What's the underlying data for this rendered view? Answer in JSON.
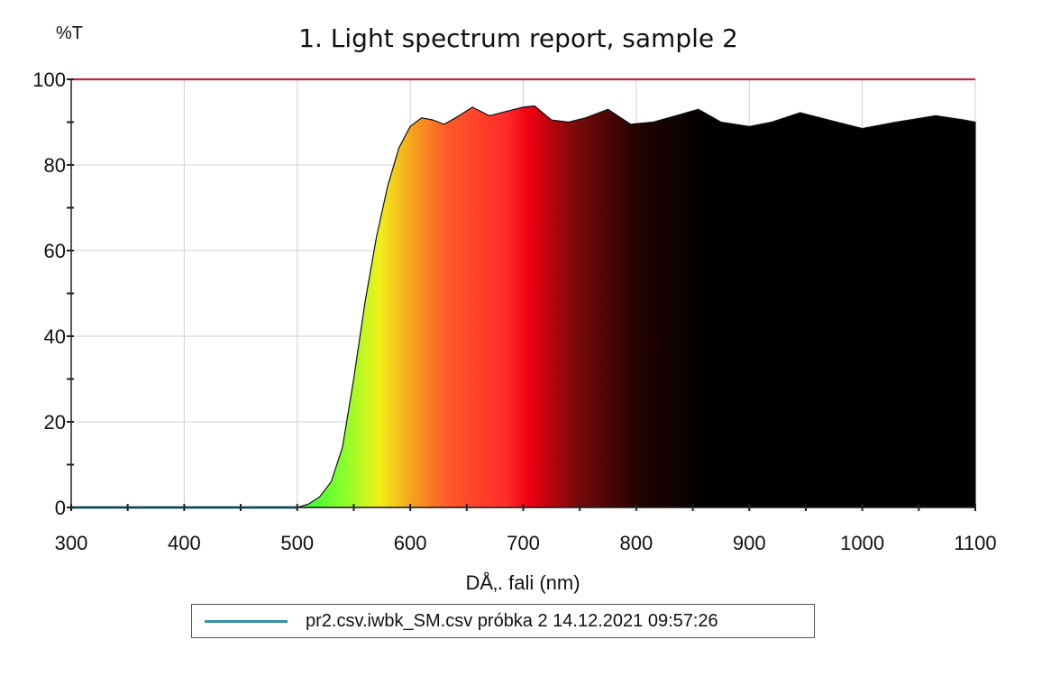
{
  "chart_data": {
    "type": "area",
    "title": "1. Light spectrum report, sample 2",
    "ylabel": "%T",
    "xlabel": "DÅ‚. fali (nm)",
    "xlim": [
      300,
      1100
    ],
    "ylim": [
      0,
      100
    ],
    "x_ticks": [
      300,
      400,
      500,
      600,
      700,
      800,
      900,
      1000,
      1100
    ],
    "y_ticks": [
      0,
      20,
      40,
      60,
      80,
      100
    ],
    "grid": true,
    "legend_position": "bottom",
    "series": [
      {
        "name": "pr2.csv.iwbk_SM.csv  próbka 2 14.12.2021 09:57:26",
        "color": "#3a8fa6",
        "x": [
          300,
          500,
          510,
          520,
          530,
          540,
          550,
          560,
          570,
          580,
          590,
          600,
          610,
          620,
          630,
          640,
          655,
          670,
          685,
          700,
          710,
          725,
          740,
          755,
          775,
          795,
          815,
          835,
          855,
          875,
          900,
          920,
          945,
          970,
          1000,
          1030,
          1065,
          1090,
          1100
        ],
        "y": [
          0,
          0,
          0.8,
          2.5,
          6,
          14,
          30,
          48,
          63,
          75,
          84,
          89,
          91,
          90.5,
          89.5,
          91,
          93.5,
          91.5,
          92.5,
          93.5,
          93.8,
          90.5,
          90,
          91,
          93,
          89.5,
          90,
          91.5,
          93,
          90,
          89,
          90,
          92.2,
          90.5,
          88.5,
          90,
          91.5,
          90.5,
          90
        ]
      }
    ],
    "reference_line": {
      "y": 100,
      "color": "#c0284a"
    }
  },
  "legend": {
    "label": "pr2.csv.iwbk_SM.csv  próbka 2 14.12.2021 09:57:26"
  }
}
